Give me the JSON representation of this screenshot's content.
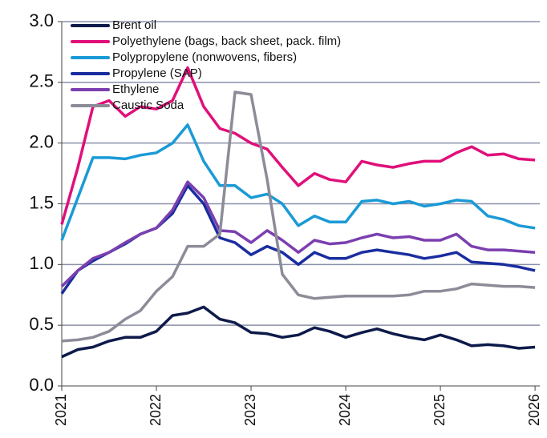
{
  "chart_data": {
    "type": "line",
    "x": [
      2021,
      2021.17,
      2021.33,
      2021.5,
      2021.67,
      2021.83,
      2022,
      2022.17,
      2022.33,
      2022.5,
      2022.67,
      2022.83,
      2023,
      2023.17,
      2023.33,
      2023.5,
      2023.67,
      2023.83,
      2024,
      2024.17,
      2024.33,
      2024.5,
      2024.67,
      2024.83,
      2025,
      2025.17,
      2025.33,
      2025.5,
      2025.67,
      2025.83,
      2026
    ],
    "series": [
      {
        "name": "Brent oil",
        "color": "#0d1a4a",
        "values": [
          0.24,
          0.3,
          0.32,
          0.37,
          0.4,
          0.4,
          0.45,
          0.58,
          0.6,
          0.65,
          0.55,
          0.52,
          0.44,
          0.43,
          0.4,
          0.42,
          0.48,
          0.45,
          0.4,
          0.44,
          0.47,
          0.43,
          0.4,
          0.38,
          0.42,
          0.38,
          0.33,
          0.34,
          0.33,
          0.31,
          0.32
        ]
      },
      {
        "name": "Polyethylene (bags, back sheet, pack. film)",
        "color": "#e0107a",
        "values": [
          1.33,
          1.8,
          2.3,
          2.35,
          2.22,
          2.3,
          2.28,
          2.35,
          2.62,
          2.3,
          2.12,
          2.08,
          2.0,
          1.95,
          1.8,
          1.65,
          1.75,
          1.7,
          1.68,
          1.85,
          1.82,
          1.8,
          1.83,
          1.85,
          1.85,
          1.92,
          1.97,
          1.9,
          1.91,
          1.87,
          1.86
        ]
      },
      {
        "name": "Polypropylene (nonwovens, fibers)",
        "color": "#1a9ad6",
        "values": [
          1.2,
          1.55,
          1.88,
          1.88,
          1.87,
          1.9,
          1.92,
          2.0,
          2.15,
          1.85,
          1.65,
          1.65,
          1.55,
          1.58,
          1.5,
          1.32,
          1.4,
          1.35,
          1.35,
          1.52,
          1.53,
          1.5,
          1.52,
          1.48,
          1.5,
          1.53,
          1.52,
          1.4,
          1.37,
          1.32,
          1.3
        ]
      },
      {
        "name": "Propylene (SAP)",
        "color": "#1a2da0",
        "values": [
          0.76,
          0.95,
          1.03,
          1.1,
          1.17,
          1.25,
          1.3,
          1.42,
          1.65,
          1.5,
          1.22,
          1.18,
          1.08,
          1.15,
          1.1,
          1.0,
          1.1,
          1.05,
          1.05,
          1.1,
          1.12,
          1.1,
          1.08,
          1.05,
          1.07,
          1.1,
          1.02,
          1.01,
          1.0,
          0.98,
          0.95
        ]
      },
      {
        "name": "Ethylene",
        "color": "#7b3fb0",
        "values": [
          0.82,
          0.95,
          1.05,
          1.1,
          1.18,
          1.25,
          1.3,
          1.45,
          1.68,
          1.55,
          1.28,
          1.27,
          1.18,
          1.28,
          1.2,
          1.1,
          1.2,
          1.17,
          1.18,
          1.22,
          1.25,
          1.22,
          1.23,
          1.2,
          1.2,
          1.25,
          1.15,
          1.12,
          1.12,
          1.11,
          1.1
        ]
      },
      {
        "name": "Caustic Soda",
        "color": "#8c8c99",
        "values": [
          0.37,
          0.38,
          0.4,
          0.45,
          0.55,
          0.62,
          0.78,
          0.9,
          1.15,
          1.15,
          1.25,
          2.42,
          2.4,
          1.7,
          0.92,
          0.75,
          0.72,
          0.73,
          0.74,
          0.74,
          0.74,
          0.74,
          0.75,
          0.78,
          0.78,
          0.8,
          0.84,
          0.83,
          0.82,
          0.82,
          0.81
        ]
      }
    ],
    "xlim": [
      2021,
      2026.05
    ],
    "xticks": [
      2021,
      2022,
      2023,
      2024,
      2025,
      2026
    ],
    "ylim": [
      0,
      3
    ],
    "yticks": [
      {
        "value": 0,
        "label": "0.0"
      },
      {
        "value": 0.5,
        "label": "0.5"
      },
      {
        "value": 1,
        "label": "1.0"
      },
      {
        "value": 1.5,
        "label": "1.5"
      },
      {
        "value": 2,
        "label": "2.0"
      },
      {
        "value": 2.5,
        "label": "2.5"
      },
      {
        "value": 3,
        "label": "3.0"
      }
    ],
    "grid": true
  }
}
